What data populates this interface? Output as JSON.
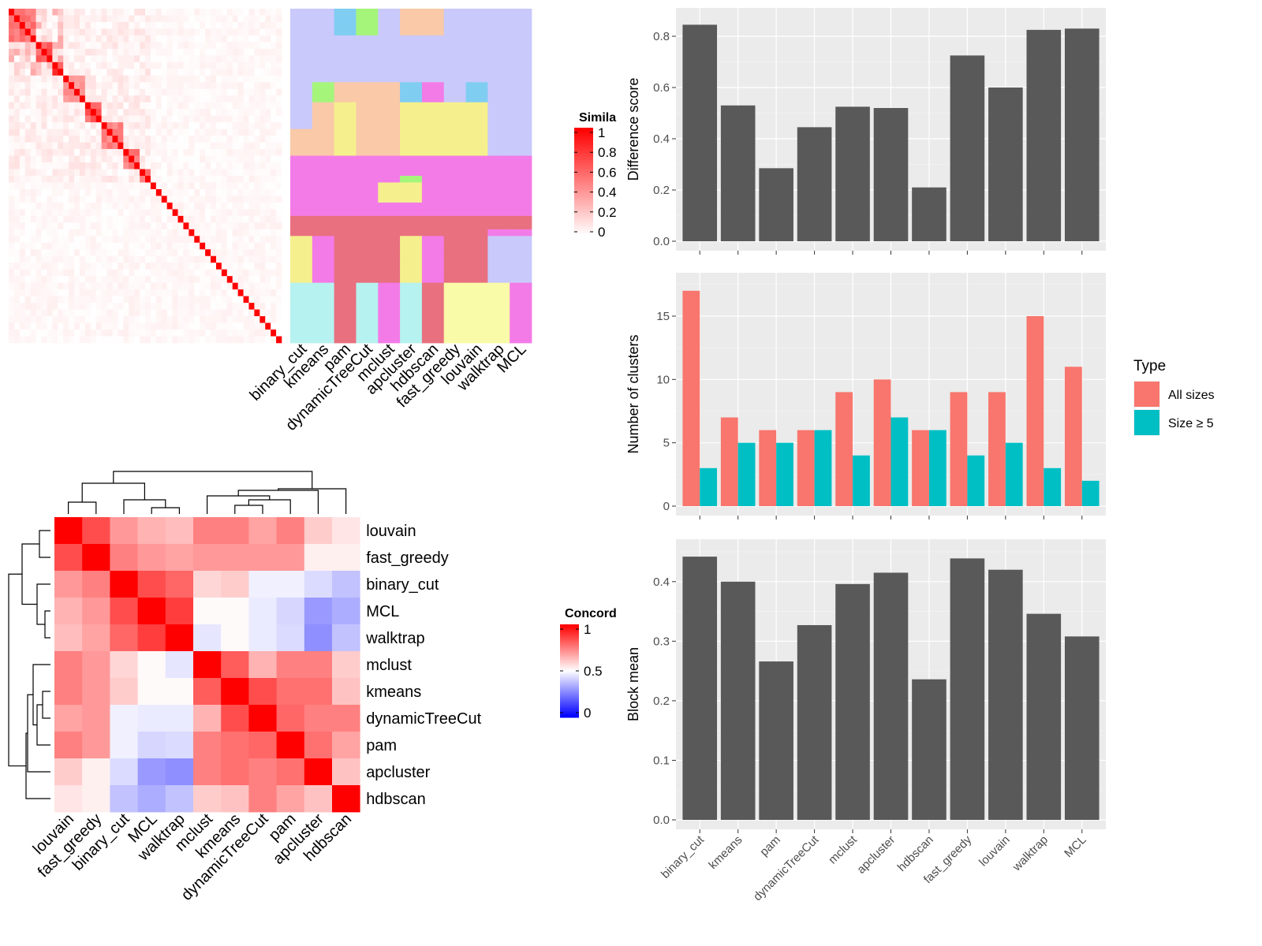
{
  "methods_top": [
    "binary_cut",
    "kmeans",
    "pam",
    "dynamicTreeCut",
    "mclust",
    "apcluster",
    "hdbscan",
    "fast_greedy",
    "louvain",
    "walktrap",
    "MCL"
  ],
  "similarity_legend": {
    "title": "Simila",
    "ticks": [
      "1",
      "0.8",
      "0.6",
      "0.4",
      "0.2",
      "0"
    ]
  },
  "concordance_legend": {
    "title": "Concord",
    "ticks": [
      "1",
      "0.5",
      "0"
    ]
  },
  "palette": {
    "cluster_colors": [
      "#c9c9fb",
      "#f37be7",
      "#e8707f",
      "#f5f08d",
      "#b6f2ef",
      "#f9c9a8",
      "#a5f57b",
      "#80cdf2",
      "#e8f4a1",
      "#f9fba8"
    ],
    "bar_gray": "#595959",
    "all_sizes": "#f8766d",
    "size_ge5": "#00bfc4",
    "panel_bg": "#ebebeb"
  },
  "chart_data": [
    {
      "type": "heatmap",
      "name": "similarity_matrix",
      "legend_title": "Simila",
      "legend_range": [
        0,
        1
      ],
      "description_blocks": [
        {
          "size": 5,
          "within": 0.65
        },
        {
          "size": 3,
          "within": 0.75
        },
        {
          "size": 2,
          "within": 0.85
        },
        {
          "size": 4,
          "within": 0.5
        },
        {
          "size": 3,
          "within": 0.7
        },
        {
          "size": 4,
          "within": 0.55
        },
        {
          "size": 3,
          "within": 0.6
        },
        {
          "size": 2,
          "within": 0.6
        },
        {
          "size": 24,
          "within": 0.0
        }
      ]
    },
    {
      "type": "heatmap",
      "name": "cluster_assignment_columns",
      "categories": [
        "binary_cut",
        "kmeans",
        "pam",
        "dynamicTreeCut",
        "mclust",
        "apcluster",
        "hdbscan",
        "fast_greedy",
        "louvain",
        "walktrap",
        "MCL"
      ]
    },
    {
      "type": "bar",
      "title": "",
      "categories": [
        "binary_cut",
        "kmeans",
        "pam",
        "dynamicTreeCut",
        "mclust",
        "apcluster",
        "hdbscan",
        "fast_greedy",
        "louvain",
        "walktrap",
        "MCL"
      ],
      "values": [
        0.845,
        0.53,
        0.285,
        0.445,
        0.525,
        0.52,
        0.21,
        0.725,
        0.6,
        0.825,
        0.83
      ],
      "ylabel": "Difference score",
      "xlabel": "",
      "ylim": [
        0,
        0.88
      ],
      "yticks": [
        "0.0",
        "0.2",
        "0.4",
        "0.6",
        "0.8"
      ],
      "grid": true
    },
    {
      "type": "bar",
      "title": "",
      "categories": [
        "binary_cut",
        "kmeans",
        "pam",
        "dynamicTreeCut",
        "mclust",
        "apcluster",
        "hdbscan",
        "fast_greedy",
        "louvain",
        "walktrap",
        "MCL"
      ],
      "series": [
        {
          "name": "All sizes",
          "values": [
            17,
            7,
            6,
            6,
            9,
            10,
            6,
            9,
            9,
            15,
            11
          ]
        },
        {
          "name": "Size ≥ 5",
          "values": [
            3,
            5,
            5,
            6,
            4,
            7,
            6,
            4,
            5,
            3,
            2
          ]
        }
      ],
      "ylabel": "Number of clusters",
      "xlabel": "",
      "ylim": [
        0,
        17.8
      ],
      "yticks": [
        "0",
        "5",
        "10",
        "15"
      ],
      "legend_title": "Type",
      "legend_position": "right",
      "grid": true
    },
    {
      "type": "bar",
      "title": "",
      "categories": [
        "binary_cut",
        "kmeans",
        "pam",
        "dynamicTreeCut",
        "mclust",
        "apcluster",
        "hdbscan",
        "fast_greedy",
        "louvain",
        "walktrap",
        "MCL"
      ],
      "values": [
        0.442,
        0.4,
        0.266,
        0.327,
        0.396,
        0.415,
        0.236,
        0.439,
        0.42,
        0.346,
        0.308
      ],
      "ylabel": "Block mean",
      "xlabel": "",
      "ylim": [
        0,
        0.458
      ],
      "yticks": [
        "0.0",
        "0.1",
        "0.2",
        "0.3",
        "0.4"
      ],
      "grid": true
    },
    {
      "type": "heatmap",
      "name": "concordance",
      "legend_title": "Concord",
      "legend_range": [
        0,
        1
      ],
      "rows": [
        "louvain",
        "fast_greedy",
        "binary_cut",
        "MCL",
        "walktrap",
        "mclust",
        "kmeans",
        "dynamicTreeCut",
        "pam",
        "apcluster",
        "hdbscan"
      ],
      "columns": [
        "louvain",
        "fast_greedy",
        "binary_cut",
        "MCL",
        "walktrap",
        "mclust",
        "kmeans",
        "dynamicTreeCut",
        "pam",
        "apcluster",
        "hdbscan"
      ],
      "values": [
        [
          1.0,
          0.85,
          0.7,
          0.65,
          0.63,
          0.75,
          0.75,
          0.68,
          0.75,
          0.6,
          0.55
        ],
        [
          0.85,
          1.0,
          0.75,
          0.7,
          0.68,
          0.7,
          0.7,
          0.7,
          0.7,
          0.53,
          0.53
        ],
        [
          0.7,
          0.75,
          1.0,
          0.85,
          0.8,
          0.58,
          0.6,
          0.47,
          0.47,
          0.43,
          0.38
        ],
        [
          0.65,
          0.7,
          0.85,
          1.0,
          0.88,
          0.51,
          0.51,
          0.46,
          0.42,
          0.3,
          0.34
        ],
        [
          0.63,
          0.68,
          0.8,
          0.88,
          1.0,
          0.45,
          0.51,
          0.46,
          0.43,
          0.28,
          0.38
        ],
        [
          0.75,
          0.7,
          0.58,
          0.51,
          0.45,
          1.0,
          0.82,
          0.65,
          0.75,
          0.75,
          0.6
        ],
        [
          0.75,
          0.7,
          0.6,
          0.51,
          0.51,
          0.82,
          1.0,
          0.85,
          0.78,
          0.78,
          0.62
        ],
        [
          0.68,
          0.7,
          0.47,
          0.46,
          0.46,
          0.65,
          0.85,
          1.0,
          0.8,
          0.75,
          0.75
        ],
        [
          0.75,
          0.7,
          0.47,
          0.42,
          0.43,
          0.75,
          0.78,
          0.8,
          1.0,
          0.78,
          0.68
        ],
        [
          0.6,
          0.53,
          0.43,
          0.3,
          0.28,
          0.75,
          0.78,
          0.75,
          0.78,
          1.0,
          0.62
        ],
        [
          0.55,
          0.53,
          0.38,
          0.34,
          0.38,
          0.6,
          0.62,
          0.75,
          0.68,
          0.62,
          1.0
        ]
      ]
    }
  ]
}
